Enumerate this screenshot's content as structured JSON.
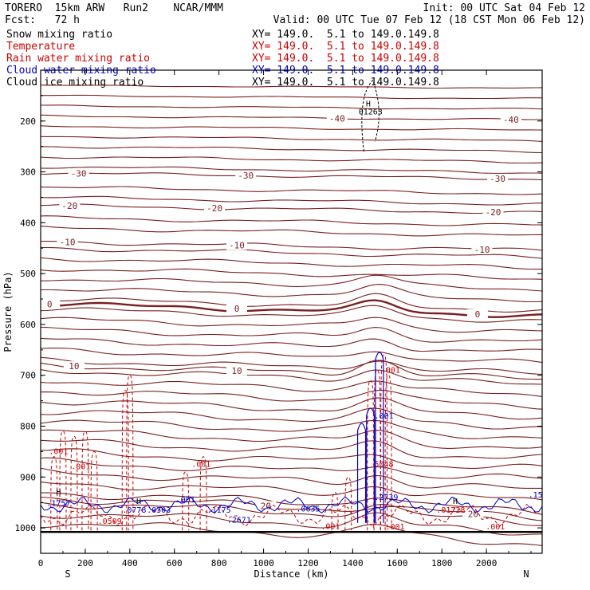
{
  "header": {
    "title_left": "TORERO  15km ARW   Run2    NCAR/MMM",
    "init": "Init: 00 UTC Sat 04 Feb 12",
    "fcst": "Fcst:   72 h",
    "valid": "Valid: 00 UTC Tue 07 Feb 12 (18 CST Mon 06 Feb 12)"
  },
  "legend": [
    {
      "name": "Snow mixing ratio",
      "color": "#000000",
      "range": "XY= 149.0.  5.1 to 149.0.149.8"
    },
    {
      "name": "Temperature",
      "color": "#cc0000",
      "range": "XY= 149.0.  5.1 to 149.0.149.8"
    },
    {
      "name": "Rain water mixing ratio",
      "color": "#cc0000",
      "range": "XY= 149.0.  5.1 to 149.0.149.8"
    },
    {
      "name": "Cloud water mixing ratio",
      "color": "#0000cc",
      "range": "XY= 149.0.  5.1 to 149.0.149.8"
    },
    {
      "name": "Cloud ice mixing ratio",
      "color": "#000000",
      "range": "XY= 149.0.  5.1 to 149.0.149.8"
    }
  ],
  "colors": {
    "temperature": "#7a1f1f",
    "rain": "#cc0000",
    "cloud_water": "#0000cc",
    "ice": "#000000",
    "axis": "#000000"
  },
  "chart_data": {
    "type": "line",
    "xlabel": "Distance (km)",
    "ylabel": "Pressure (hPa)",
    "xlim": [
      0,
      2250
    ],
    "ylim": [
      1050,
      100
    ],
    "x_ticks": [
      "0",
      "200",
      "400",
      "600",
      "800",
      "1000",
      "1200",
      "1400",
      "1600",
      "1800",
      "2000"
    ],
    "y_ticks": [
      "200",
      "300",
      "400",
      "500",
      "600",
      "700",
      "800",
      "900",
      "1000"
    ],
    "x_end_labels": {
      "left": "S",
      "right": "N"
    },
    "ground_pressure": 1008,
    "temperature_isotherms": [
      {
        "label": "-40",
        "base_p": 190,
        "bump": 0,
        "label_x": [
          1330,
          2110
        ]
      },
      {
        "label": "-30",
        "base_p": 302,
        "bump": 0,
        "label_x": [
          170,
          920,
          2050
        ]
      },
      {
        "label": "-20",
        "base_p": 366,
        "bump": 0,
        "label_x": [
          130,
          780,
          2030
        ]
      },
      {
        "label": "-10",
        "base_p": 437,
        "bump": 0,
        "label_x": [
          120,
          880,
          1980
        ]
      },
      {
        "label": "0",
        "base_p": 560,
        "bump": 18,
        "label_x": [
          40,
          880,
          1960
        ]
      },
      {
        "label": "10",
        "base_p": 680,
        "bump": 30,
        "label_x": [
          150,
          880
        ]
      },
      {
        "label": "20",
        "base_p": 940,
        "bump": 8,
        "label_x": [
          1010,
          1940
        ]
      }
    ],
    "rain_labels": [
      {
        "x": 80,
        "p": 855,
        "text": ".001"
      },
      {
        "x": 180,
        "p": 885,
        "text": ".001"
      },
      {
        "x": 720,
        "p": 880,
        "text": ".001"
      },
      {
        "x": 1570,
        "p": 695,
        "text": ".001"
      },
      {
        "x": 1540,
        "p": 880,
        "text": "5048"
      },
      {
        "x": 1300,
        "p": 1002,
        "text": ".001"
      },
      {
        "x": 1590,
        "p": 1003,
        "text": ".001"
      },
      {
        "x": 2040,
        "p": 1003,
        "text": ".001"
      },
      {
        "x": 310,
        "p": 992,
        "text": ".0509"
      },
      {
        "x": 1840,
        "p": 970,
        "text": ".01728"
      }
    ],
    "cloud_labels": [
      {
        "x": 80,
        "p": 957,
        "text": ".1757"
      },
      {
        "x": 420,
        "p": 970,
        "text": ".0778"
      },
      {
        "x": 530,
        "p": 970,
        "text": ".0303"
      },
      {
        "x": 650,
        "p": 950,
        "text": ".001"
      },
      {
        "x": 800,
        "p": 970,
        "text": ".1175"
      },
      {
        "x": 890,
        "p": 990,
        "text": ".2671"
      },
      {
        "x": 1200,
        "p": 968,
        "text": ".0635"
      },
      {
        "x": 1540,
        "p": 785,
        "text": ".001"
      },
      {
        "x": 1550,
        "p": 945,
        "text": ".2739"
      },
      {
        "x": 2220,
        "p": 940,
        "text": ".15"
      }
    ],
    "high_marks": [
      {
        "x": 1470,
        "p": 171
      },
      {
        "x": 80,
        "p": 935
      },
      {
        "x": 440,
        "p": 953
      },
      {
        "x": 1860,
        "p": 953
      }
    ],
    "annotations": [
      {
        "x": 1480,
        "p": 187,
        "text": "01263"
      }
    ]
  }
}
